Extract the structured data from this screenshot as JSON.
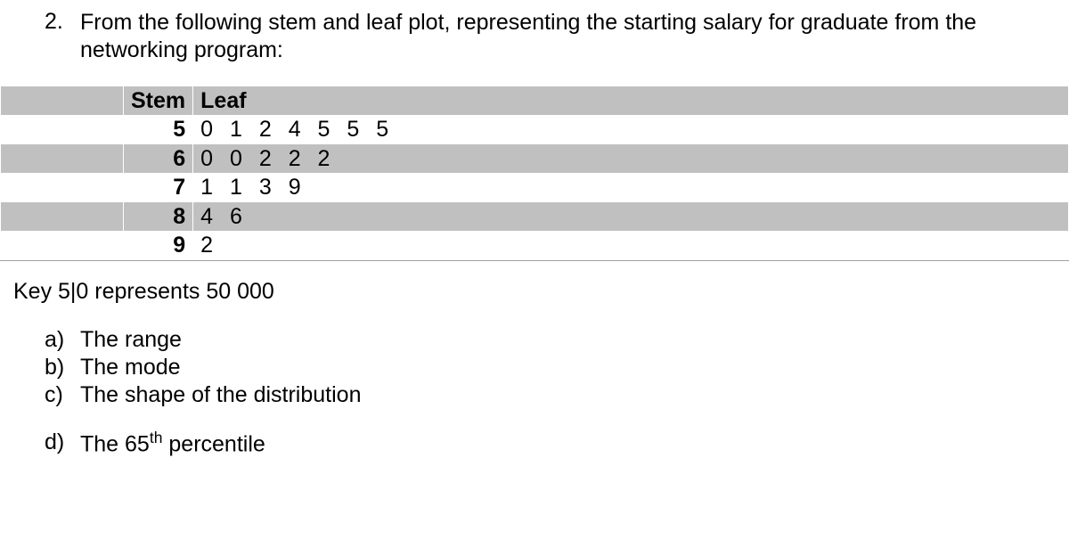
{
  "question": {
    "number": "2.",
    "text": "From the following stem and leaf plot, representing the starting salary for graduate from the networking program:"
  },
  "table": {
    "headers": {
      "stem": "Stem",
      "leaf": "Leaf"
    },
    "rows": [
      {
        "stem": "5",
        "leaf": "0 1 2 4 5 5 5",
        "shaded": false
      },
      {
        "stem": "6",
        "leaf": "0 0 2 2 2",
        "shaded": true
      },
      {
        "stem": "7",
        "leaf": "1 1 3 9",
        "shaded": false
      },
      {
        "stem": "8",
        "leaf": "4 6",
        "shaded": true
      },
      {
        "stem": "9",
        "leaf": "2",
        "shaded": false
      }
    ]
  },
  "key": "Key 5|0 represents 50 000",
  "subquestions": {
    "a": {
      "label": "a)",
      "text": "The range"
    },
    "b": {
      "label": "b)",
      "text": "The mode"
    },
    "c": {
      "label": "c)",
      "text": "The shape of the distribution"
    },
    "d": {
      "label": "d)",
      "text_html": "The 65<sup>th</sup> percentile"
    }
  },
  "colors": {
    "shaded_bg": "#c0c0c0",
    "plain_bg": "#ffffff",
    "text": "#000000",
    "border": "#a0a0a0"
  },
  "typography": {
    "font_family": "Arial",
    "font_size_pt": 19
  }
}
